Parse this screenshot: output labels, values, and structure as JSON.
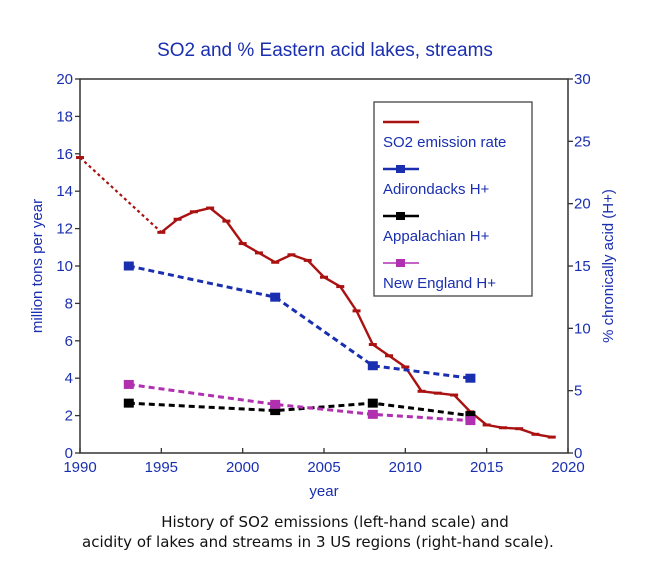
{
  "chart_data": {
    "type": "line",
    "title": "SO2 and % Eastern acid lakes, streams",
    "xlabel": "year",
    "ylabel": "million tons per year",
    "ylabel_right": "% chronically acid (H+)",
    "xlim": [
      1990,
      2020
    ],
    "ylim": [
      0,
      20
    ],
    "ylim_right": [
      0,
      30
    ],
    "xticks": [
      "1990",
      "1995",
      "2000",
      "2005",
      "2010",
      "2015",
      "2020"
    ],
    "yticks": [
      "0",
      "2",
      "4",
      "6",
      "8",
      "10",
      "12",
      "14",
      "16",
      "18",
      "20"
    ],
    "yticks_right": [
      "0",
      "5",
      "10",
      "15",
      "20",
      "25",
      "30"
    ],
    "grid": false,
    "legend_position": "top-right",
    "series": [
      {
        "name": "SO2 emission rate",
        "axis": "left",
        "color": "#aa1111",
        "style": "solid",
        "dashed_segment_years": [
          1990,
          1995
        ],
        "x": [
          1990,
          1995,
          1996,
          1997,
          1998,
          1999,
          2000,
          2001,
          2002,
          2003,
          2004,
          2005,
          2006,
          2007,
          2008,
          2009,
          2010,
          2011,
          2012,
          2013,
          2014,
          2015,
          2016,
          2017,
          2018,
          2019
        ],
        "values": [
          15.8,
          11.8,
          12.5,
          12.9,
          13.1,
          12.4,
          11.2,
          10.7,
          10.2,
          10.6,
          10.3,
          9.4,
          8.9,
          7.6,
          5.8,
          5.2,
          4.6,
          3.3,
          3.2,
          3.1,
          2.2,
          1.5,
          1.35,
          1.3,
          1.0,
          0.85
        ]
      },
      {
        "name": "Adirondacks H+",
        "axis": "right",
        "color": "#1a2fb0",
        "style": "dashed",
        "x": [
          1993,
          2002,
          2008,
          2014
        ],
        "values": [
          15,
          12.5,
          7,
          6
        ]
      },
      {
        "name": "Appalachian H+",
        "axis": "right",
        "color": "#000000",
        "style": "dashed",
        "x": [
          1993,
          2002,
          2008,
          2014
        ],
        "values": [
          4,
          3.4,
          4,
          3
        ]
      },
      {
        "name": "New England H+",
        "axis": "right",
        "color": "#b030b0",
        "style": "dashed",
        "x": [
          1993,
          2002,
          2008,
          2014
        ],
        "values": [
          5.5,
          3.9,
          3.1,
          2.6
        ]
      }
    ],
    "text_color": "#1a2fb0"
  },
  "caption": {
    "line1": "History of SO2 emissions (left-hand scale) and",
    "line2": "acidity of lakes and streams in 3 US regions (right-hand scale)."
  }
}
